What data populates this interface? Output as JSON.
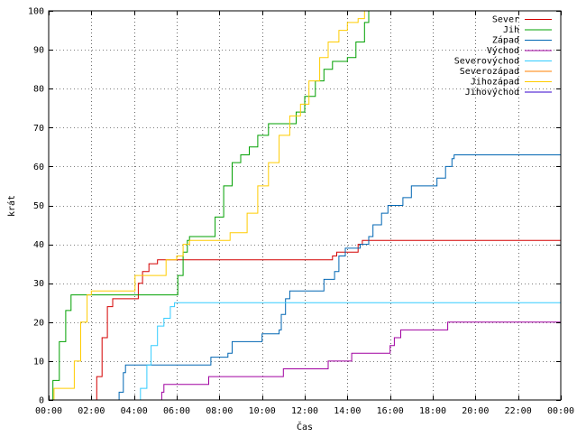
{
  "chart_data": {
    "type": "line",
    "xlabel": "Čas",
    "ylabel": "krát",
    "xlim": [
      0,
      24
    ],
    "ylim": [
      0,
      100
    ],
    "x_ticks": [
      {
        "v": 0,
        "label": "00:00"
      },
      {
        "v": 2,
        "label": "02:00"
      },
      {
        "v": 4,
        "label": "04:00"
      },
      {
        "v": 6,
        "label": "06:00"
      },
      {
        "v": 8,
        "label": "08:00"
      },
      {
        "v": 10,
        "label": "10:00"
      },
      {
        "v": 12,
        "label": "12:00"
      },
      {
        "v": 14,
        "label": "14:00"
      },
      {
        "v": 16,
        "label": "16:00"
      },
      {
        "v": 18,
        "label": "18:00"
      },
      {
        "v": 20,
        "label": "20:00"
      },
      {
        "v": 22,
        "label": "22:00"
      },
      {
        "v": 24,
        "label": "00:00"
      }
    ],
    "y_ticks": [
      {
        "v": 0,
        "label": "0"
      },
      {
        "v": 10,
        "label": "10"
      },
      {
        "v": 20,
        "label": "20"
      },
      {
        "v": 30,
        "label": "30"
      },
      {
        "v": 40,
        "label": "40"
      },
      {
        "v": 50,
        "label": "50"
      },
      {
        "v": 60,
        "label": "60"
      },
      {
        "v": 70,
        "label": "70"
      },
      {
        "v": 80,
        "label": "80"
      },
      {
        "v": 90,
        "label": "90"
      },
      {
        "v": 100,
        "label": "100"
      }
    ],
    "legend_position": "top-right",
    "series": [
      {
        "name": "Sever",
        "color": "#d40000",
        "points": [
          [
            2.08,
            0
          ],
          [
            2.25,
            6
          ],
          [
            2.5,
            16
          ],
          [
            2.75,
            24
          ],
          [
            3.0,
            26
          ],
          [
            4.0,
            26
          ],
          [
            4.2,
            30
          ],
          [
            4.4,
            33
          ],
          [
            4.7,
            35
          ],
          [
            5.1,
            36
          ],
          [
            13.2,
            36
          ],
          [
            13.3,
            37
          ],
          [
            13.5,
            38
          ],
          [
            14.3,
            38
          ],
          [
            14.5,
            40
          ],
          [
            14.7,
            41
          ],
          [
            24,
            41
          ]
        ]
      },
      {
        "name": "Jih",
        "color": "#00a000",
        "points": [
          [
            0,
            0
          ],
          [
            0.2,
            5
          ],
          [
            0.5,
            15
          ],
          [
            0.8,
            23
          ],
          [
            1.05,
            27
          ],
          [
            5.9,
            27
          ],
          [
            6.05,
            32
          ],
          [
            6.3,
            38
          ],
          [
            6.5,
            41
          ],
          [
            6.6,
            42
          ],
          [
            7.5,
            42
          ],
          [
            7.8,
            47
          ],
          [
            8.2,
            55
          ],
          [
            8.6,
            61
          ],
          [
            9.0,
            63
          ],
          [
            9.4,
            65
          ],
          [
            9.8,
            68
          ],
          [
            10.3,
            71
          ],
          [
            11.2,
            71
          ],
          [
            11.6,
            74
          ],
          [
            12.0,
            78
          ],
          [
            12.5,
            82
          ],
          [
            12.9,
            85
          ],
          [
            13.3,
            87
          ],
          [
            14.0,
            88
          ],
          [
            14.4,
            92
          ],
          [
            14.8,
            97
          ],
          [
            15.0,
            100
          ]
        ]
      },
      {
        "name": "Západ",
        "color": "#0066b3",
        "points": [
          [
            3.2,
            0
          ],
          [
            3.3,
            2
          ],
          [
            3.5,
            7
          ],
          [
            3.6,
            9
          ],
          [
            7.4,
            9
          ],
          [
            7.6,
            11
          ],
          [
            8.4,
            12
          ],
          [
            8.6,
            15
          ],
          [
            9.9,
            15
          ],
          [
            10.0,
            17
          ],
          [
            10.8,
            18
          ],
          [
            10.9,
            22
          ],
          [
            11.1,
            26
          ],
          [
            11.3,
            28
          ],
          [
            12.7,
            28
          ],
          [
            12.9,
            31
          ],
          [
            13.4,
            33
          ],
          [
            13.6,
            37
          ],
          [
            13.9,
            39
          ],
          [
            14.6,
            40
          ],
          [
            15.0,
            42
          ],
          [
            15.2,
            45
          ],
          [
            15.6,
            48
          ],
          [
            15.9,
            50
          ],
          [
            16.6,
            52
          ],
          [
            17.0,
            55
          ],
          [
            18.0,
            55
          ],
          [
            18.2,
            57
          ],
          [
            18.6,
            60
          ],
          [
            18.9,
            62
          ],
          [
            19.0,
            63
          ],
          [
            24,
            63
          ]
        ]
      },
      {
        "name": "Východ",
        "color": "#a000a0",
        "points": [
          [
            5.2,
            0
          ],
          [
            5.3,
            2
          ],
          [
            5.4,
            4
          ],
          [
            7.4,
            4
          ],
          [
            7.5,
            6
          ],
          [
            10.9,
            6
          ],
          [
            11.0,
            8
          ],
          [
            13.0,
            8
          ],
          [
            13.1,
            10
          ],
          [
            14.0,
            10
          ],
          [
            14.2,
            12
          ],
          [
            15.8,
            12
          ],
          [
            16.0,
            14
          ],
          [
            16.2,
            16
          ],
          [
            16.5,
            18
          ],
          [
            18.6,
            18
          ],
          [
            18.7,
            20
          ],
          [
            24,
            20
          ]
        ]
      },
      {
        "name": "Severovýchod",
        "color": "#33ccff",
        "points": [
          [
            4.1,
            0
          ],
          [
            4.3,
            3
          ],
          [
            4.6,
            9
          ],
          [
            4.8,
            14
          ],
          [
            5.1,
            19
          ],
          [
            5.4,
            21
          ],
          [
            5.7,
            24
          ],
          [
            5.9,
            25
          ],
          [
            24,
            25
          ]
        ]
      },
      {
        "name": "Severozápad",
        "color": "#ff8000",
        "points": []
      },
      {
        "name": "Jihozápad",
        "color": "#ffcc00",
        "points": [
          [
            0.1,
            0
          ],
          [
            0.25,
            3
          ],
          [
            1.0,
            3
          ],
          [
            1.2,
            10
          ],
          [
            1.5,
            20
          ],
          [
            1.8,
            27
          ],
          [
            2.0,
            28
          ],
          [
            3.9,
            28
          ],
          [
            4.05,
            32
          ],
          [
            5.3,
            32
          ],
          [
            5.5,
            36
          ],
          [
            6.0,
            37
          ],
          [
            6.3,
            40
          ],
          [
            6.6,
            41
          ],
          [
            8.3,
            41
          ],
          [
            8.5,
            43
          ],
          [
            9.1,
            43
          ],
          [
            9.3,
            48
          ],
          [
            9.8,
            55
          ],
          [
            10.3,
            61
          ],
          [
            10.8,
            68
          ],
          [
            11.3,
            73
          ],
          [
            11.8,
            76
          ],
          [
            12.2,
            82
          ],
          [
            12.7,
            88
          ],
          [
            13.1,
            92
          ],
          [
            13.6,
            95
          ],
          [
            14.0,
            97
          ],
          [
            14.5,
            98
          ],
          [
            14.8,
            100
          ]
        ]
      },
      {
        "name": "Jihovýchod",
        "color": "#3300cc",
        "points": []
      }
    ]
  }
}
